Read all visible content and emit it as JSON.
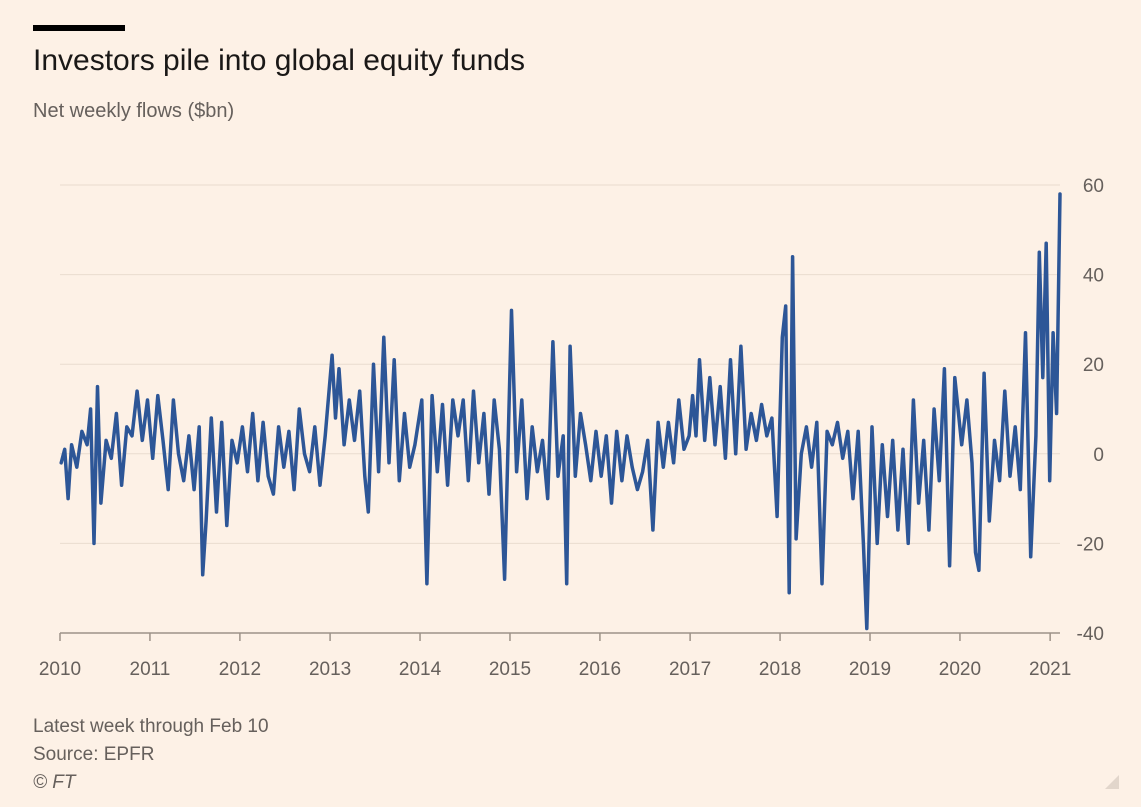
{
  "header": {
    "title": "Investors pile into global equity funds",
    "subtitle": "Net weekly flows ($bn)"
  },
  "footer": {
    "note": "Latest week through Feb 10",
    "source": "Source: EPFR",
    "copyright": "© FT"
  },
  "colors": {
    "background": "#fdf1e6",
    "line": "#2d5697",
    "grid": "#e9dccf",
    "axis_text": "#66605c"
  },
  "chart_data": {
    "type": "line",
    "title": "Investors pile into global equity funds",
    "subtitle": "Net weekly flows ($bn)",
    "xlabel": "",
    "ylabel": "",
    "xlim": [
      "2010-01-01",
      "2021-02-10"
    ],
    "ylim": [
      -40,
      60
    ],
    "yticks": [
      60,
      40,
      20,
      0,
      -20,
      -40
    ],
    "ytick_labels": [
      "60",
      "40",
      "20",
      "0",
      "-20",
      "-40"
    ],
    "xticks": [
      "2010",
      "2011",
      "2012",
      "2013",
      "2014",
      "2015",
      "2016",
      "2017",
      "2018",
      "2019",
      "2020",
      "2021"
    ],
    "y_axis_position": "right",
    "grid": true,
    "legend": "none",
    "series": [
      {
        "values": [
          [
            "2010-01-06",
            -2
          ],
          [
            "2010-01-20",
            1
          ],
          [
            "2010-02-03",
            -10
          ],
          [
            "2010-02-17",
            2
          ],
          [
            "2010-03-10",
            -3
          ],
          [
            "2010-03-31",
            5
          ],
          [
            "2010-04-21",
            2
          ],
          [
            "2010-05-05",
            10
          ],
          [
            "2010-05-19",
            -20
          ],
          [
            "2010-06-02",
            15
          ],
          [
            "2010-06-16",
            -11
          ],
          [
            "2010-07-07",
            3
          ],
          [
            "2010-07-28",
            -1
          ],
          [
            "2010-08-18",
            9
          ],
          [
            "2010-09-08",
            -7
          ],
          [
            "2010-09-29",
            6
          ],
          [
            "2010-10-20",
            4
          ],
          [
            "2010-11-10",
            14
          ],
          [
            "2010-12-01",
            3
          ],
          [
            "2010-12-22",
            12
          ],
          [
            "2011-01-12",
            -1
          ],
          [
            "2011-02-02",
            13
          ],
          [
            "2011-02-23",
            3
          ],
          [
            "2011-03-16",
            -8
          ],
          [
            "2011-04-06",
            12
          ],
          [
            "2011-04-27",
            0
          ],
          [
            "2011-05-18",
            -6
          ],
          [
            "2011-06-08",
            4
          ],
          [
            "2011-06-29",
            -8
          ],
          [
            "2011-07-20",
            6
          ],
          [
            "2011-08-03",
            -27
          ],
          [
            "2011-08-17",
            -15
          ],
          [
            "2011-09-07",
            8
          ],
          [
            "2011-09-28",
            -13
          ],
          [
            "2011-10-19",
            7
          ],
          [
            "2011-11-09",
            -16
          ],
          [
            "2011-11-30",
            3
          ],
          [
            "2011-12-21",
            -2
          ],
          [
            "2012-01-11",
            6
          ],
          [
            "2012-02-01",
            -4
          ],
          [
            "2012-02-22",
            9
          ],
          [
            "2012-03-14",
            -6
          ],
          [
            "2012-04-04",
            7
          ],
          [
            "2012-04-25",
            -5
          ],
          [
            "2012-05-16",
            -9
          ],
          [
            "2012-06-06",
            6
          ],
          [
            "2012-06-27",
            -3
          ],
          [
            "2012-07-18",
            5
          ],
          [
            "2012-08-08",
            -8
          ],
          [
            "2012-08-29",
            10
          ],
          [
            "2012-09-19",
            0
          ],
          [
            "2012-10-10",
            -4
          ],
          [
            "2012-10-31",
            6
          ],
          [
            "2012-11-21",
            -7
          ],
          [
            "2012-12-12",
            4
          ],
          [
            "2013-01-09",
            22
          ],
          [
            "2013-01-23",
            8
          ],
          [
            "2013-02-06",
            19
          ],
          [
            "2013-02-27",
            2
          ],
          [
            "2013-03-20",
            12
          ],
          [
            "2013-04-10",
            3
          ],
          [
            "2013-05-01",
            14
          ],
          [
            "2013-05-22",
            -5
          ],
          [
            "2013-06-05",
            -13
          ],
          [
            "2013-06-26",
            20
          ],
          [
            "2013-07-17",
            -4
          ],
          [
            "2013-08-07",
            26
          ],
          [
            "2013-08-28",
            -2
          ],
          [
            "2013-09-18",
            21
          ],
          [
            "2013-10-09",
            -6
          ],
          [
            "2013-10-30",
            9
          ],
          [
            "2013-11-20",
            -3
          ],
          [
            "2013-12-11",
            2
          ],
          [
            "2014-01-08",
            12
          ],
          [
            "2014-01-29",
            -29
          ],
          [
            "2014-02-19",
            13
          ],
          [
            "2014-03-12",
            -4
          ],
          [
            "2014-04-02",
            11
          ],
          [
            "2014-04-23",
            -7
          ],
          [
            "2014-05-14",
            12
          ],
          [
            "2014-06-04",
            4
          ],
          [
            "2014-06-25",
            12
          ],
          [
            "2014-07-16",
            -6
          ],
          [
            "2014-08-06",
            14
          ],
          [
            "2014-08-27",
            -2
          ],
          [
            "2014-09-17",
            9
          ],
          [
            "2014-10-08",
            -9
          ],
          [
            "2014-10-29",
            12
          ],
          [
            "2014-11-19",
            1
          ],
          [
            "2014-12-10",
            -28
          ],
          [
            "2015-01-07",
            32
          ],
          [
            "2015-01-28",
            -4
          ],
          [
            "2015-02-18",
            12
          ],
          [
            "2015-03-11",
            -10
          ],
          [
            "2015-04-01",
            6
          ],
          [
            "2015-04-22",
            -4
          ],
          [
            "2015-05-13",
            3
          ],
          [
            "2015-06-03",
            -10
          ],
          [
            "2015-06-24",
            25
          ],
          [
            "2015-07-15",
            -5
          ],
          [
            "2015-08-05",
            4
          ],
          [
            "2015-08-19",
            -29
          ],
          [
            "2015-09-02",
            24
          ],
          [
            "2015-09-23",
            -5
          ],
          [
            "2015-10-14",
            9
          ],
          [
            "2015-11-04",
            2
          ],
          [
            "2015-11-25",
            -6
          ],
          [
            "2015-12-16",
            5
          ],
          [
            "2016-01-06",
            -5
          ],
          [
            "2016-01-27",
            4
          ],
          [
            "2016-02-17",
            -11
          ],
          [
            "2016-03-09",
            5
          ],
          [
            "2016-03-30",
            -6
          ],
          [
            "2016-04-20",
            4
          ],
          [
            "2016-05-11",
            -3
          ],
          [
            "2016-06-01",
            -8
          ],
          [
            "2016-06-22",
            -4
          ],
          [
            "2016-07-13",
            3
          ],
          [
            "2016-08-03",
            -17
          ],
          [
            "2016-08-24",
            7
          ],
          [
            "2016-09-14",
            -3
          ],
          [
            "2016-10-05",
            7
          ],
          [
            "2016-10-26",
            -2
          ],
          [
            "2016-11-16",
            12
          ],
          [
            "2016-12-07",
            1
          ],
          [
            "2016-12-28",
            4
          ],
          [
            "2017-01-11",
            13
          ],
          [
            "2017-01-25",
            4
          ],
          [
            "2017-02-08",
            21
          ],
          [
            "2017-03-01",
            3
          ],
          [
            "2017-03-22",
            17
          ],
          [
            "2017-04-12",
            2
          ],
          [
            "2017-05-03",
            15
          ],
          [
            "2017-05-24",
            -1
          ],
          [
            "2017-06-14",
            21
          ],
          [
            "2017-07-05",
            0
          ],
          [
            "2017-07-26",
            24
          ],
          [
            "2017-08-16",
            1
          ],
          [
            "2017-09-06",
            9
          ],
          [
            "2017-09-27",
            3
          ],
          [
            "2017-10-18",
            11
          ],
          [
            "2017-11-08",
            4
          ],
          [
            "2017-11-29",
            8
          ],
          [
            "2017-12-20",
            -14
          ],
          [
            "2018-01-10",
            26
          ],
          [
            "2018-01-24",
            33
          ],
          [
            "2018-02-07",
            -31
          ],
          [
            "2018-02-21",
            44
          ],
          [
            "2018-03-07",
            -19
          ],
          [
            "2018-03-28",
            0
          ],
          [
            "2018-04-18",
            6
          ],
          [
            "2018-05-09",
            -3
          ],
          [
            "2018-05-30",
            7
          ],
          [
            "2018-06-20",
            -29
          ],
          [
            "2018-07-11",
            5
          ],
          [
            "2018-08-01",
            2
          ],
          [
            "2018-08-22",
            7
          ],
          [
            "2018-09-12",
            -1
          ],
          [
            "2018-10-03",
            5
          ],
          [
            "2018-10-24",
            -10
          ],
          [
            "2018-11-14",
            5
          ],
          [
            "2018-12-05",
            -20
          ],
          [
            "2018-12-19",
            -39
          ],
          [
            "2019-01-09",
            6
          ],
          [
            "2019-01-30",
            -20
          ],
          [
            "2019-02-20",
            2
          ],
          [
            "2019-03-13",
            -14
          ],
          [
            "2019-04-03",
            3
          ],
          [
            "2019-04-24",
            -17
          ],
          [
            "2019-05-15",
            1
          ],
          [
            "2019-06-05",
            -20
          ],
          [
            "2019-06-26",
            12
          ],
          [
            "2019-07-17",
            -11
          ],
          [
            "2019-08-07",
            3
          ],
          [
            "2019-08-28",
            -17
          ],
          [
            "2019-09-18",
            10
          ],
          [
            "2019-10-09",
            -6
          ],
          [
            "2019-10-30",
            19
          ],
          [
            "2019-11-20",
            -25
          ],
          [
            "2019-12-11",
            17
          ],
          [
            "2020-01-08",
            2
          ],
          [
            "2020-01-29",
            12
          ],
          [
            "2020-02-19",
            -2
          ],
          [
            "2020-03-04",
            -22
          ],
          [
            "2020-03-18",
            -26
          ],
          [
            "2020-04-08",
            18
          ],
          [
            "2020-04-29",
            -15
          ],
          [
            "2020-05-20",
            3
          ],
          [
            "2020-06-10",
            -6
          ],
          [
            "2020-07-01",
            14
          ],
          [
            "2020-07-22",
            -5
          ],
          [
            "2020-08-12",
            6
          ],
          [
            "2020-09-02",
            -8
          ],
          [
            "2020-09-23",
            27
          ],
          [
            "2020-10-14",
            -23
          ],
          [
            "2020-11-04",
            4
          ],
          [
            "2020-11-18",
            45
          ],
          [
            "2020-12-02",
            17
          ],
          [
            "2020-12-16",
            47
          ],
          [
            "2020-12-30",
            -6
          ],
          [
            "2021-01-13",
            27
          ],
          [
            "2021-01-27",
            9
          ],
          [
            "2021-02-10",
            58
          ]
        ]
      }
    ]
  }
}
